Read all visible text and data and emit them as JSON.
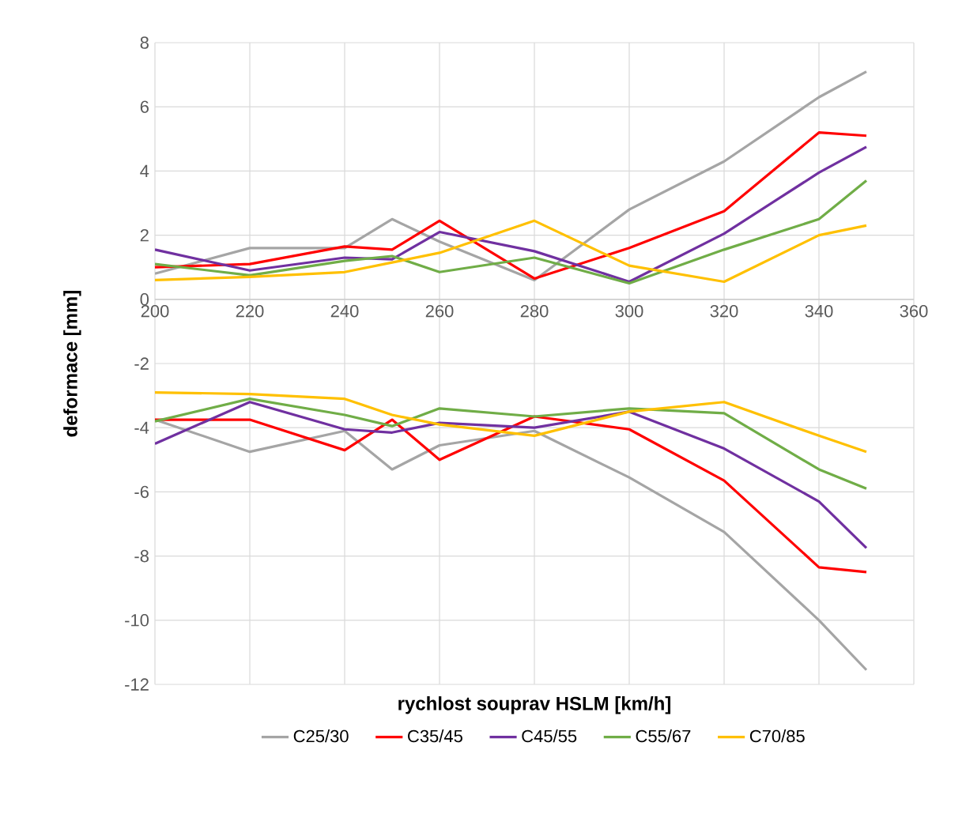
{
  "chart_data": {
    "type": "line",
    "xlabel": "rychlost souprav HSLM [km/h]",
    "ylabel": "deformace [mm]",
    "x": [
      200,
      220,
      240,
      250,
      260,
      280,
      300,
      320,
      340,
      350
    ],
    "xlim": [
      200,
      360
    ],
    "xticks": [
      200,
      220,
      240,
      260,
      280,
      300,
      320,
      340,
      360
    ],
    "ylim": [
      -12,
      8
    ],
    "yticks": [
      -12,
      -10,
      -8,
      -6,
      -4,
      -2,
      0,
      2,
      4,
      6,
      8
    ],
    "grid": true,
    "legend": "bottom",
    "series": [
      {
        "name": "C25/30",
        "color": "#a5a5a5",
        "values": [
          0.8,
          1.6,
          1.6,
          2.5,
          1.8,
          0.6,
          2.8,
          4.3,
          6.3,
          7.1
        ]
      },
      {
        "color": "#a5a5a5",
        "values": [
          -3.75,
          -4.75,
          -4.1,
          -5.3,
          -4.55,
          -4.1,
          -5.55,
          -7.25,
          -10.0,
          -11.55
        ]
      },
      {
        "name": "C35/45",
        "color": "#ff0000",
        "values": [
          1.0,
          1.1,
          1.65,
          1.55,
          2.45,
          0.65,
          1.6,
          2.75,
          5.2,
          5.1
        ]
      },
      {
        "color": "#ff0000",
        "values": [
          -3.75,
          -3.75,
          -4.7,
          -3.75,
          -5.0,
          -3.65,
          -4.05,
          -5.65,
          -8.35,
          -8.5
        ]
      },
      {
        "name": "C45/55",
        "color": "#7030a0",
        "values": [
          1.55,
          0.9,
          1.3,
          1.25,
          2.1,
          1.5,
          0.55,
          2.05,
          3.95,
          4.75
        ]
      },
      {
        "color": "#7030a0",
        "values": [
          -4.5,
          -3.2,
          -4.05,
          -4.15,
          -3.85,
          -4.0,
          -3.5,
          -4.65,
          -6.3,
          -7.75
        ]
      },
      {
        "name": "C55/67",
        "color": "#70ad47",
        "values": [
          1.1,
          0.75,
          1.2,
          1.35,
          0.85,
          1.3,
          0.5,
          1.55,
          2.5,
          3.7
        ]
      },
      {
        "color": "#70ad47",
        "values": [
          -3.8,
          -3.1,
          -3.6,
          -3.95,
          -3.4,
          -3.65,
          -3.4,
          -3.55,
          -5.3,
          -5.9
        ]
      },
      {
        "name": "C70/85",
        "color": "#ffc000",
        "values": [
          0.6,
          0.7,
          0.85,
          1.15,
          1.45,
          2.45,
          1.05,
          0.55,
          2.0,
          2.3
        ]
      },
      {
        "color": "#ffc000",
        "values": [
          -2.9,
          -2.95,
          -3.1,
          -3.6,
          -3.9,
          -4.25,
          -3.5,
          -3.2,
          -4.25,
          -4.75
        ]
      }
    ]
  }
}
